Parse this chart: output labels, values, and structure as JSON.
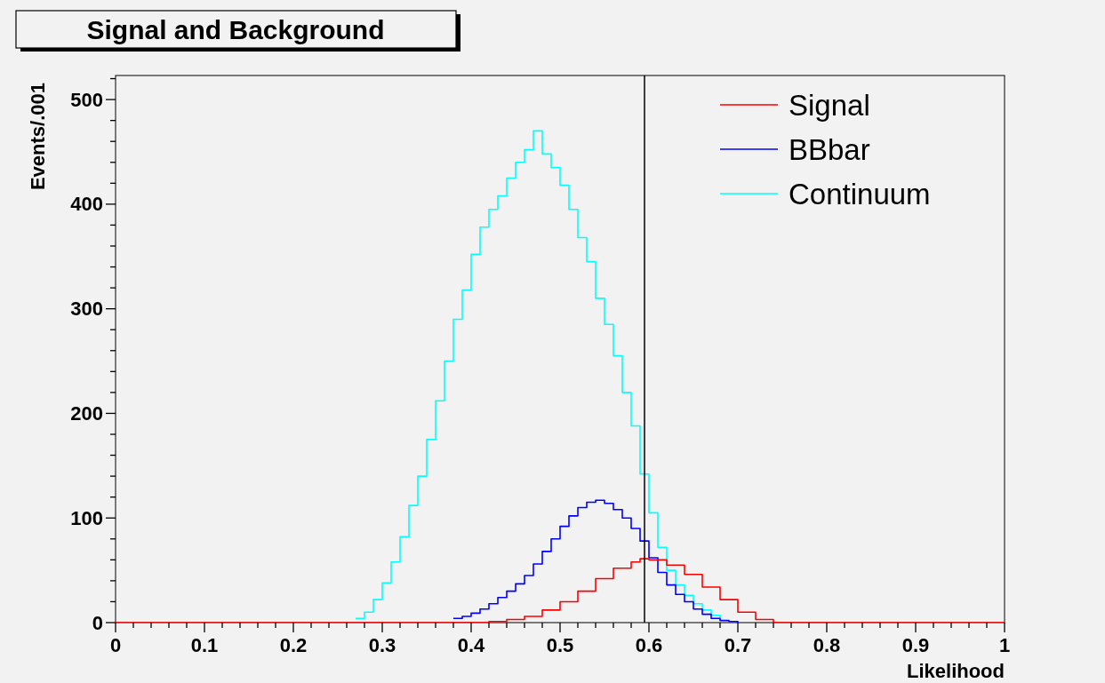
{
  "chart_data": {
    "type": "step",
    "title": "Signal and Background",
    "xlabel": "Likelihood",
    "ylabel": "Events/.001",
    "xlim": [
      0,
      1
    ],
    "ylim": [
      0,
      523
    ],
    "xticks": [
      0,
      {
        "value": 0.02,
        "label": null
      },
      {
        "value": 0.04,
        "label": null
      },
      {
        "value": 0.06,
        "label": null
      },
      {
        "value": 0.08,
        "label": null
      },
      0.1,
      {
        "value": 0.12,
        "label": null
      },
      {
        "value": 0.14,
        "label": null
      },
      {
        "value": 0.16,
        "label": null
      },
      {
        "value": 0.18,
        "label": null
      },
      0.2,
      {
        "value": 0.22,
        "label": null
      },
      {
        "value": 0.24,
        "label": null
      },
      {
        "value": 0.26,
        "label": null
      },
      {
        "value": 0.28,
        "label": null
      },
      0.3,
      {
        "value": 0.32,
        "label": null
      },
      {
        "value": 0.34,
        "label": null
      },
      {
        "value": 0.36,
        "label": null
      },
      {
        "value": 0.38,
        "label": null
      },
      0.4,
      {
        "value": 0.42,
        "label": null
      },
      {
        "value": 0.44,
        "label": null
      },
      {
        "value": 0.46,
        "label": null
      },
      {
        "value": 0.48,
        "label": null
      },
      0.5,
      {
        "value": 0.52,
        "label": null
      },
      {
        "value": 0.54,
        "label": null
      },
      {
        "value": 0.56,
        "label": null
      },
      {
        "value": 0.58,
        "label": null
      },
      0.6,
      {
        "value": 0.62,
        "label": null
      },
      {
        "value": 0.64,
        "label": null
      },
      {
        "value": 0.66,
        "label": null
      },
      {
        "value": 0.68,
        "label": null
      },
      0.7,
      {
        "value": 0.72,
        "label": null
      },
      {
        "value": 0.74,
        "label": null
      },
      {
        "value": 0.76,
        "label": null
      },
      {
        "value": 0.78,
        "label": null
      },
      0.8,
      {
        "value": 0.82,
        "label": null
      },
      {
        "value": 0.84,
        "label": null
      },
      {
        "value": 0.86,
        "label": null
      },
      {
        "value": 0.88,
        "label": null
      },
      0.9,
      {
        "value": 0.92,
        "label": null
      },
      {
        "value": 0.94,
        "label": null
      },
      {
        "value": 0.96,
        "label": null
      },
      {
        "value": 0.98,
        "label": null
      },
      1
    ],
    "yticks": [
      0,
      {
        "value": 20,
        "label": null
      },
      {
        "value": 40,
        "label": null
      },
      {
        "value": 60,
        "label": null
      },
      {
        "value": 80,
        "label": null
      },
      100,
      {
        "value": 120,
        "label": null
      },
      {
        "value": 140,
        "label": null
      },
      {
        "value": 160,
        "label": null
      },
      {
        "value": 180,
        "label": null
      },
      200,
      {
        "value": 220,
        "label": null
      },
      {
        "value": 240,
        "label": null
      },
      {
        "value": 260,
        "label": null
      },
      {
        "value": 280,
        "label": null
      },
      300,
      {
        "value": 320,
        "label": null
      },
      {
        "value": 340,
        "label": null
      },
      {
        "value": 360,
        "label": null
      },
      {
        "value": 380,
        "label": null
      },
      400,
      {
        "value": 420,
        "label": null
      },
      {
        "value": 440,
        "label": null
      },
      {
        "value": 460,
        "label": null
      },
      {
        "value": 480,
        "label": null
      },
      500,
      {
        "value": 520,
        "label": null
      }
    ],
    "legend": "top right",
    "grid": false,
    "marker": "none",
    "line_style": "solid",
    "ref_lines": [
      {
        "axis": "x",
        "value": 0.595,
        "color": "#000000"
      }
    ],
    "series": [
      {
        "name": "Signal",
        "color": "#ff0000",
        "x": [
          0,
          0.4,
          0.42,
          0.44,
          0.46,
          0.48,
          0.5,
          0.52,
          0.54,
          0.56,
          0.58,
          0.59,
          0.6,
          0.62,
          0.64,
          0.66,
          0.68,
          0.7,
          0.72,
          0.74,
          1
        ],
        "values": [
          0,
          0,
          1,
          3,
          6,
          12,
          20,
          30,
          42,
          52,
          58,
          61,
          60,
          55,
          46,
          34,
          22,
          10,
          3,
          0,
          0
        ]
      },
      {
        "name": "BBbar",
        "color": "#0000ff",
        "x": [
          0.38,
          0.39,
          0.4,
          0.41,
          0.42,
          0.43,
          0.44,
          0.45,
          0.46,
          0.47,
          0.48,
          0.49,
          0.5,
          0.51,
          0.52,
          0.53,
          0.54,
          0.55,
          0.56,
          0.57,
          0.58,
          0.59,
          0.6,
          0.61,
          0.62,
          0.63,
          0.64,
          0.65,
          0.66,
          0.67,
          0.68,
          0.69,
          0.7
        ],
        "values": [
          4,
          6,
          9,
          13,
          18,
          24,
          30,
          37,
          45,
          56,
          68,
          80,
          92,
          102,
          110,
          115,
          117,
          114,
          108,
          100,
          90,
          78,
          62,
          48,
          36,
          27,
          20,
          13,
          8,
          4,
          2,
          1,
          0
        ]
      },
      {
        "name": "Continuum",
        "color": "#00ffff",
        "x": [
          0.27,
          0.28,
          0.29,
          0.3,
          0.31,
          0.32,
          0.33,
          0.34,
          0.35,
          0.36,
          0.37,
          0.38,
          0.39,
          0.4,
          0.41,
          0.42,
          0.43,
          0.44,
          0.45,
          0.46,
          0.47,
          0.48,
          0.49,
          0.5,
          0.51,
          0.52,
          0.53,
          0.54,
          0.55,
          0.56,
          0.57,
          0.58,
          0.59,
          0.6,
          0.61,
          0.62,
          0.63,
          0.64,
          0.65,
          0.66,
          0.67,
          0.68
        ],
        "values": [
          4,
          10,
          22,
          38,
          58,
          82,
          112,
          140,
          175,
          212,
          250,
          290,
          318,
          352,
          378,
          395,
          408,
          425,
          440,
          452,
          470,
          448,
          435,
          418,
          395,
          368,
          345,
          310,
          285,
          255,
          220,
          188,
          142,
          105,
          72,
          50,
          36,
          26,
          18,
          12,
          7,
          4
        ]
      }
    ]
  }
}
